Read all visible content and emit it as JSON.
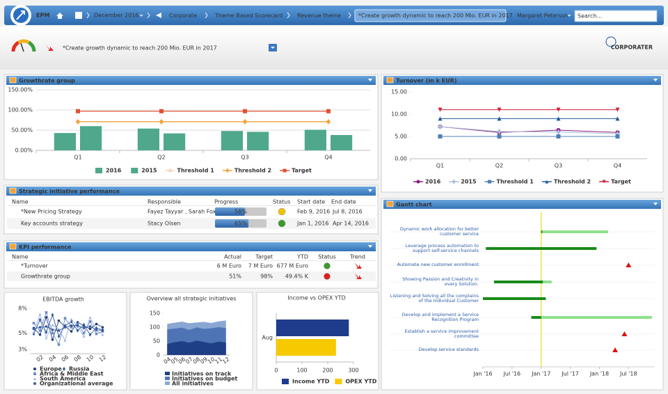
{
  "nav": {
    "app": "EPM",
    "period": "December 2016",
    "breadcrumbs": [
      "Corporate",
      "Theme Based Scorecard",
      "Revenue theme",
      "*Create growth dynamic to reach 200 Mio. EUR in 2017"
    ],
    "user": "Margaret Peterson",
    "search": "Search..."
  },
  "header": {
    "title": "*Create growth dynamic to reach 200 Mio. EUR in 2017",
    "logo": "CORPORATER"
  },
  "growth_chart": {
    "type": "bar",
    "title": "Growthrate group",
    "categories": [
      "Q1",
      "Q2",
      "Q3",
      "Q4"
    ],
    "ylim": [
      0,
      150
    ],
    "yticks": [
      {
        "value": 0,
        "label": "0.00%"
      },
      {
        "value": 50,
        "label": "50.00%"
      },
      {
        "value": 100,
        "label": "100.00%"
      },
      {
        "value": 150,
        "label": "150.00%"
      }
    ],
    "grid": true,
    "series": [
      {
        "name": "2016",
        "type": "bar",
        "color": "#4fa88c",
        "values": [
          43,
          54,
          48,
          51
        ]
      },
      {
        "name": "2015",
        "type": "bar",
        "color": "#4fa88c",
        "values": [
          60,
          42,
          46,
          38
        ]
      },
      {
        "name": "Threshold 1",
        "type": "line",
        "marker": "circle",
        "color": "#f6d7b8",
        "values": [
          71,
          71,
          71,
          71
        ]
      },
      {
        "name": "Threshold 2",
        "type": "line",
        "marker": "diamond",
        "color": "#f2a43c",
        "values": [
          71,
          71,
          71,
          71
        ]
      },
      {
        "name": "Target",
        "type": "line",
        "marker": "square",
        "color": "#e05030",
        "values": [
          97,
          97,
          97,
          97
        ]
      }
    ]
  },
  "turnover_chart": {
    "type": "line",
    "title": "Turnover (in k EUR)",
    "categories": [
      "Q1",
      "Q2",
      "Q3",
      "Q4"
    ],
    "ylim": [
      0,
      15
    ],
    "yticks": [
      {
        "value": 0,
        "label": "0.00"
      },
      {
        "value": 5,
        "label": "5.00"
      },
      {
        "value": 10,
        "label": "10.00"
      },
      {
        "value": 15,
        "label": "15.00"
      }
    ],
    "grid": false,
    "series": [
      {
        "name": "2016",
        "marker": "circle",
        "color": "#8b1a7e",
        "values": [
          7.2,
          5.9,
          6.4,
          5.9
        ]
      },
      {
        "name": "2015",
        "marker": "diamond",
        "color": "#a9bcd8",
        "values": [
          7.2,
          6.1,
          6.0,
          5.6
        ]
      },
      {
        "name": "Threshold 1",
        "marker": "square",
        "color": "#4f7fb8",
        "values": [
          5,
          5,
          5,
          5
        ]
      },
      {
        "name": "Threshold 2",
        "marker": "triangle",
        "color": "#1f5a9a",
        "values": [
          9,
          9,
          9,
          9
        ]
      },
      {
        "name": "Target",
        "marker": "triangle-down",
        "color": "#d0203c",
        "values": [
          11,
          11,
          11,
          11
        ]
      }
    ]
  },
  "strategic": {
    "title": "Strategic initiative performance",
    "columns": [
      "Name",
      "Responsible",
      "Progress",
      "Status",
      "Start date",
      "End date"
    ],
    "rows": [
      {
        "name": "*New Pricing Strategy",
        "responsible": "Fayez Tayyar , Sarah Fox",
        "progress": 58,
        "progress_label": "58%",
        "status_color": "#f2c200",
        "start": "Feb 9, 2016",
        "end": "Jul 8, 2016"
      },
      {
        "name": "Key accounts strategy",
        "responsible": "Stacy Olsen",
        "progress": 65,
        "progress_label": "65%",
        "status_color": "#3a9a2a",
        "start": "Jan 1, 2016",
        "end": "Apr 14, 2016"
      }
    ]
  },
  "kpi": {
    "title": "KPI performance",
    "columns": [
      "Name",
      "Actual",
      "Target",
      "YTD",
      "Status",
      "Trend"
    ],
    "rows": [
      {
        "name": "*Turnover",
        "actual": "6 M Euro",
        "target": "7 M Euro",
        "ytd": "677 M Euro",
        "status_color": "#3a9a2a",
        "trend_color": "#e0201a"
      },
      {
        "name": "Growthrate group",
        "actual": "51%",
        "target": "98%",
        "ytd": "49.4% K",
        "status_color": "#e0201a",
        "trend_color": "#e0201a"
      }
    ]
  },
  "ebitda_chart": {
    "type": "line",
    "title": "EBITDA growth",
    "categories": [
      null,
      "02",
      null,
      "04",
      null,
      "06",
      null,
      "08",
      null,
      "10",
      null,
      "12"
    ],
    "ylim": [
      2.5,
      8.5
    ],
    "yticks": [
      {
        "value": 3,
        "label": "3%"
      },
      {
        "value": 5,
        "label": "5%"
      },
      {
        "value": 8,
        "label": "8%"
      }
    ],
    "grid": false,
    "series": [
      {
        "name": "Europe",
        "marker": "circle",
        "color": "#1f3b7a",
        "values": [
          5.6,
          4.8,
          6.9,
          4.2,
          6.5,
          5.8,
          5.2,
          6.3,
          5.9,
          5.5,
          6.1,
          5.7
        ]
      },
      {
        "name": "Russia",
        "marker": "diamond",
        "color": "#2f55a0",
        "values": [
          4.9,
          6.6,
          5.1,
          7.2,
          4.6,
          5.9,
          6.4,
          5.3,
          6.0,
          4.8,
          5.6,
          5.4
        ]
      },
      {
        "name": "Africa & Middle East",
        "marker": "square",
        "color": "#6a8cc8",
        "values": [
          6.2,
          5.3,
          7.5,
          5.0,
          3.6,
          6.8,
          5.7,
          6.1,
          5.0,
          6.4,
          4.9,
          5.2
        ]
      },
      {
        "name": "South America",
        "marker": "triangle",
        "color": "#9ab4e0",
        "values": [
          5.1,
          7.3,
          4.4,
          6.0,
          5.5,
          4.1,
          6.7,
          5.8,
          4.6,
          6.9,
          5.3,
          4.8
        ]
      },
      {
        "name": "Organizational average",
        "marker": "circle",
        "color": "#3a5a9a",
        "values": [
          5.5,
          5.7,
          5.8,
          5.4,
          5.3,
          5.7,
          5.9,
          5.9,
          5.6,
          5.8,
          5.4,
          5.3
        ]
      }
    ]
  },
  "overview_chart": {
    "type": "area",
    "title": "Overview all strategic initiatives",
    "categories": [
      "04",
      "05",
      "06",
      "07",
      "08",
      "09",
      "10",
      "11",
      "12"
    ],
    "ylim": [
      0,
      150
    ],
    "yticks": [
      0,
      50,
      100,
      150
    ],
    "grid": false,
    "series": [
      {
        "name": "Initiatives on track",
        "color": "#1e3f86",
        "values": [
          40,
          46,
          50,
          44,
          52,
          47,
          42,
          48,
          45
        ]
      },
      {
        "name": "Initiatives on budget",
        "color": "#4f74b5",
        "values": [
          92,
          95,
          98,
          90,
          99,
          94,
          96,
          100,
          97
        ]
      },
      {
        "name": "All initiatives",
        "color": "#8aa7d4",
        "values": [
          112,
          116,
          120,
          114,
          117,
          119,
          115,
          121,
          124
        ]
      }
    ]
  },
  "income_chart": {
    "type": "barh",
    "title": "Income vs OPEX YTD",
    "categories": [
      "Aug"
    ],
    "xlim": [
      0,
      300
    ],
    "xticks": [
      0,
      100,
      200,
      300
    ],
    "series": [
      {
        "name": "Income YTD",
        "color": "#1f3b8c",
        "values": [
          282
        ]
      },
      {
        "name": "OPEX YTD",
        "color": "#f7c900",
        "values": [
          232
        ]
      }
    ]
  },
  "gantt": {
    "title": "Gantt chart",
    "xlim": [
      2016,
      2018.95
    ],
    "xticks": [
      {
        "value": 2016,
        "label": "Jan '16"
      },
      {
        "value": 2016.5,
        "label": "Jul '16"
      },
      {
        "value": 2017,
        "label": "Jan '17"
      },
      {
        "value": 2017.5,
        "label": "Jul '17"
      },
      {
        "value": 2018,
        "label": "Jan '18"
      },
      {
        "value": 2018.5,
        "label": "Jul '18"
      }
    ],
    "today": 2017,
    "done_color": "#1a8a1a",
    "remaining_color": "#8de08a",
    "milestone_color": "#e01010",
    "tasks": [
      {
        "label": "Dynamic work allocation for better customer service",
        "start": 2017,
        "done": 2017.02,
        "end": 2018.15
      },
      {
        "label": "Leverage process automation to support self-service channels",
        "start": 2016.05,
        "done": 2017.95,
        "end": 2017.95
      },
      {
        "label": "Automate new customer enrollment",
        "milestone": 2018.5
      },
      {
        "label": "Showing Passion and Creativity in every Solution.",
        "start": 2016.19,
        "done": 2017.03,
        "end": 2017.18
      },
      {
        "label": "Listening and Solving all the complains of the Individual Customer",
        "start": 2016,
        "done": 2017.08,
        "end": 2017.08
      },
      {
        "label": "Develop and implement a Service Recognition Program",
        "start": 2016.83,
        "done": 2017,
        "end": 2018.9
      },
      {
        "label": "Establish a service improvement committee",
        "milestone": 2018.43
      },
      {
        "label": "Develop service standards",
        "milestone": 2018.27
      }
    ]
  }
}
